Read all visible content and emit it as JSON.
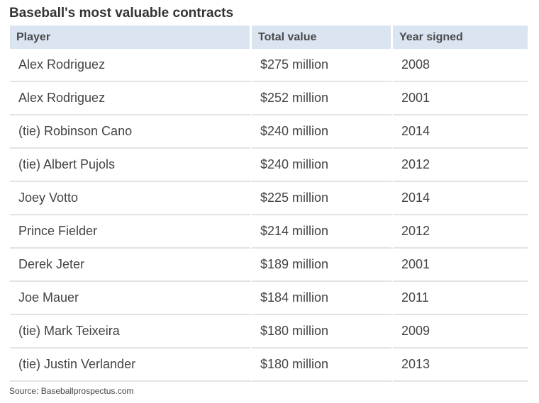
{
  "title": "Baseball's most valuable contracts",
  "table": {
    "headers": [
      "Player",
      "Total value",
      "Year signed"
    ],
    "rows": [
      [
        "Alex Rodriguez",
        "$275 million",
        "2008"
      ],
      [
        "Alex Rodriguez",
        "$252 million",
        "2001"
      ],
      [
        "(tie) Robinson Cano",
        "$240 million",
        "2014"
      ],
      [
        "(tie) Albert Pujols",
        "$240 million",
        "2012"
      ],
      [
        "Joey Votto",
        "$225 million",
        "2014"
      ],
      [
        "Prince Fielder",
        "$214 million",
        "2012"
      ],
      [
        "Derek Jeter",
        "$189 million",
        "2001"
      ],
      [
        "Joe Mauer",
        "$184 million",
        "2011"
      ],
      [
        "(tie) Mark Teixeira",
        "$180 million",
        "2009"
      ],
      [
        "(tie) Justin Verlander",
        "$180 million",
        "2013"
      ]
    ]
  },
  "source": "Source: Baseballprospectus.com",
  "colors": {
    "header_background": "#dbe5f1",
    "row_divider": "#e3e3e3",
    "text": "#444444"
  }
}
